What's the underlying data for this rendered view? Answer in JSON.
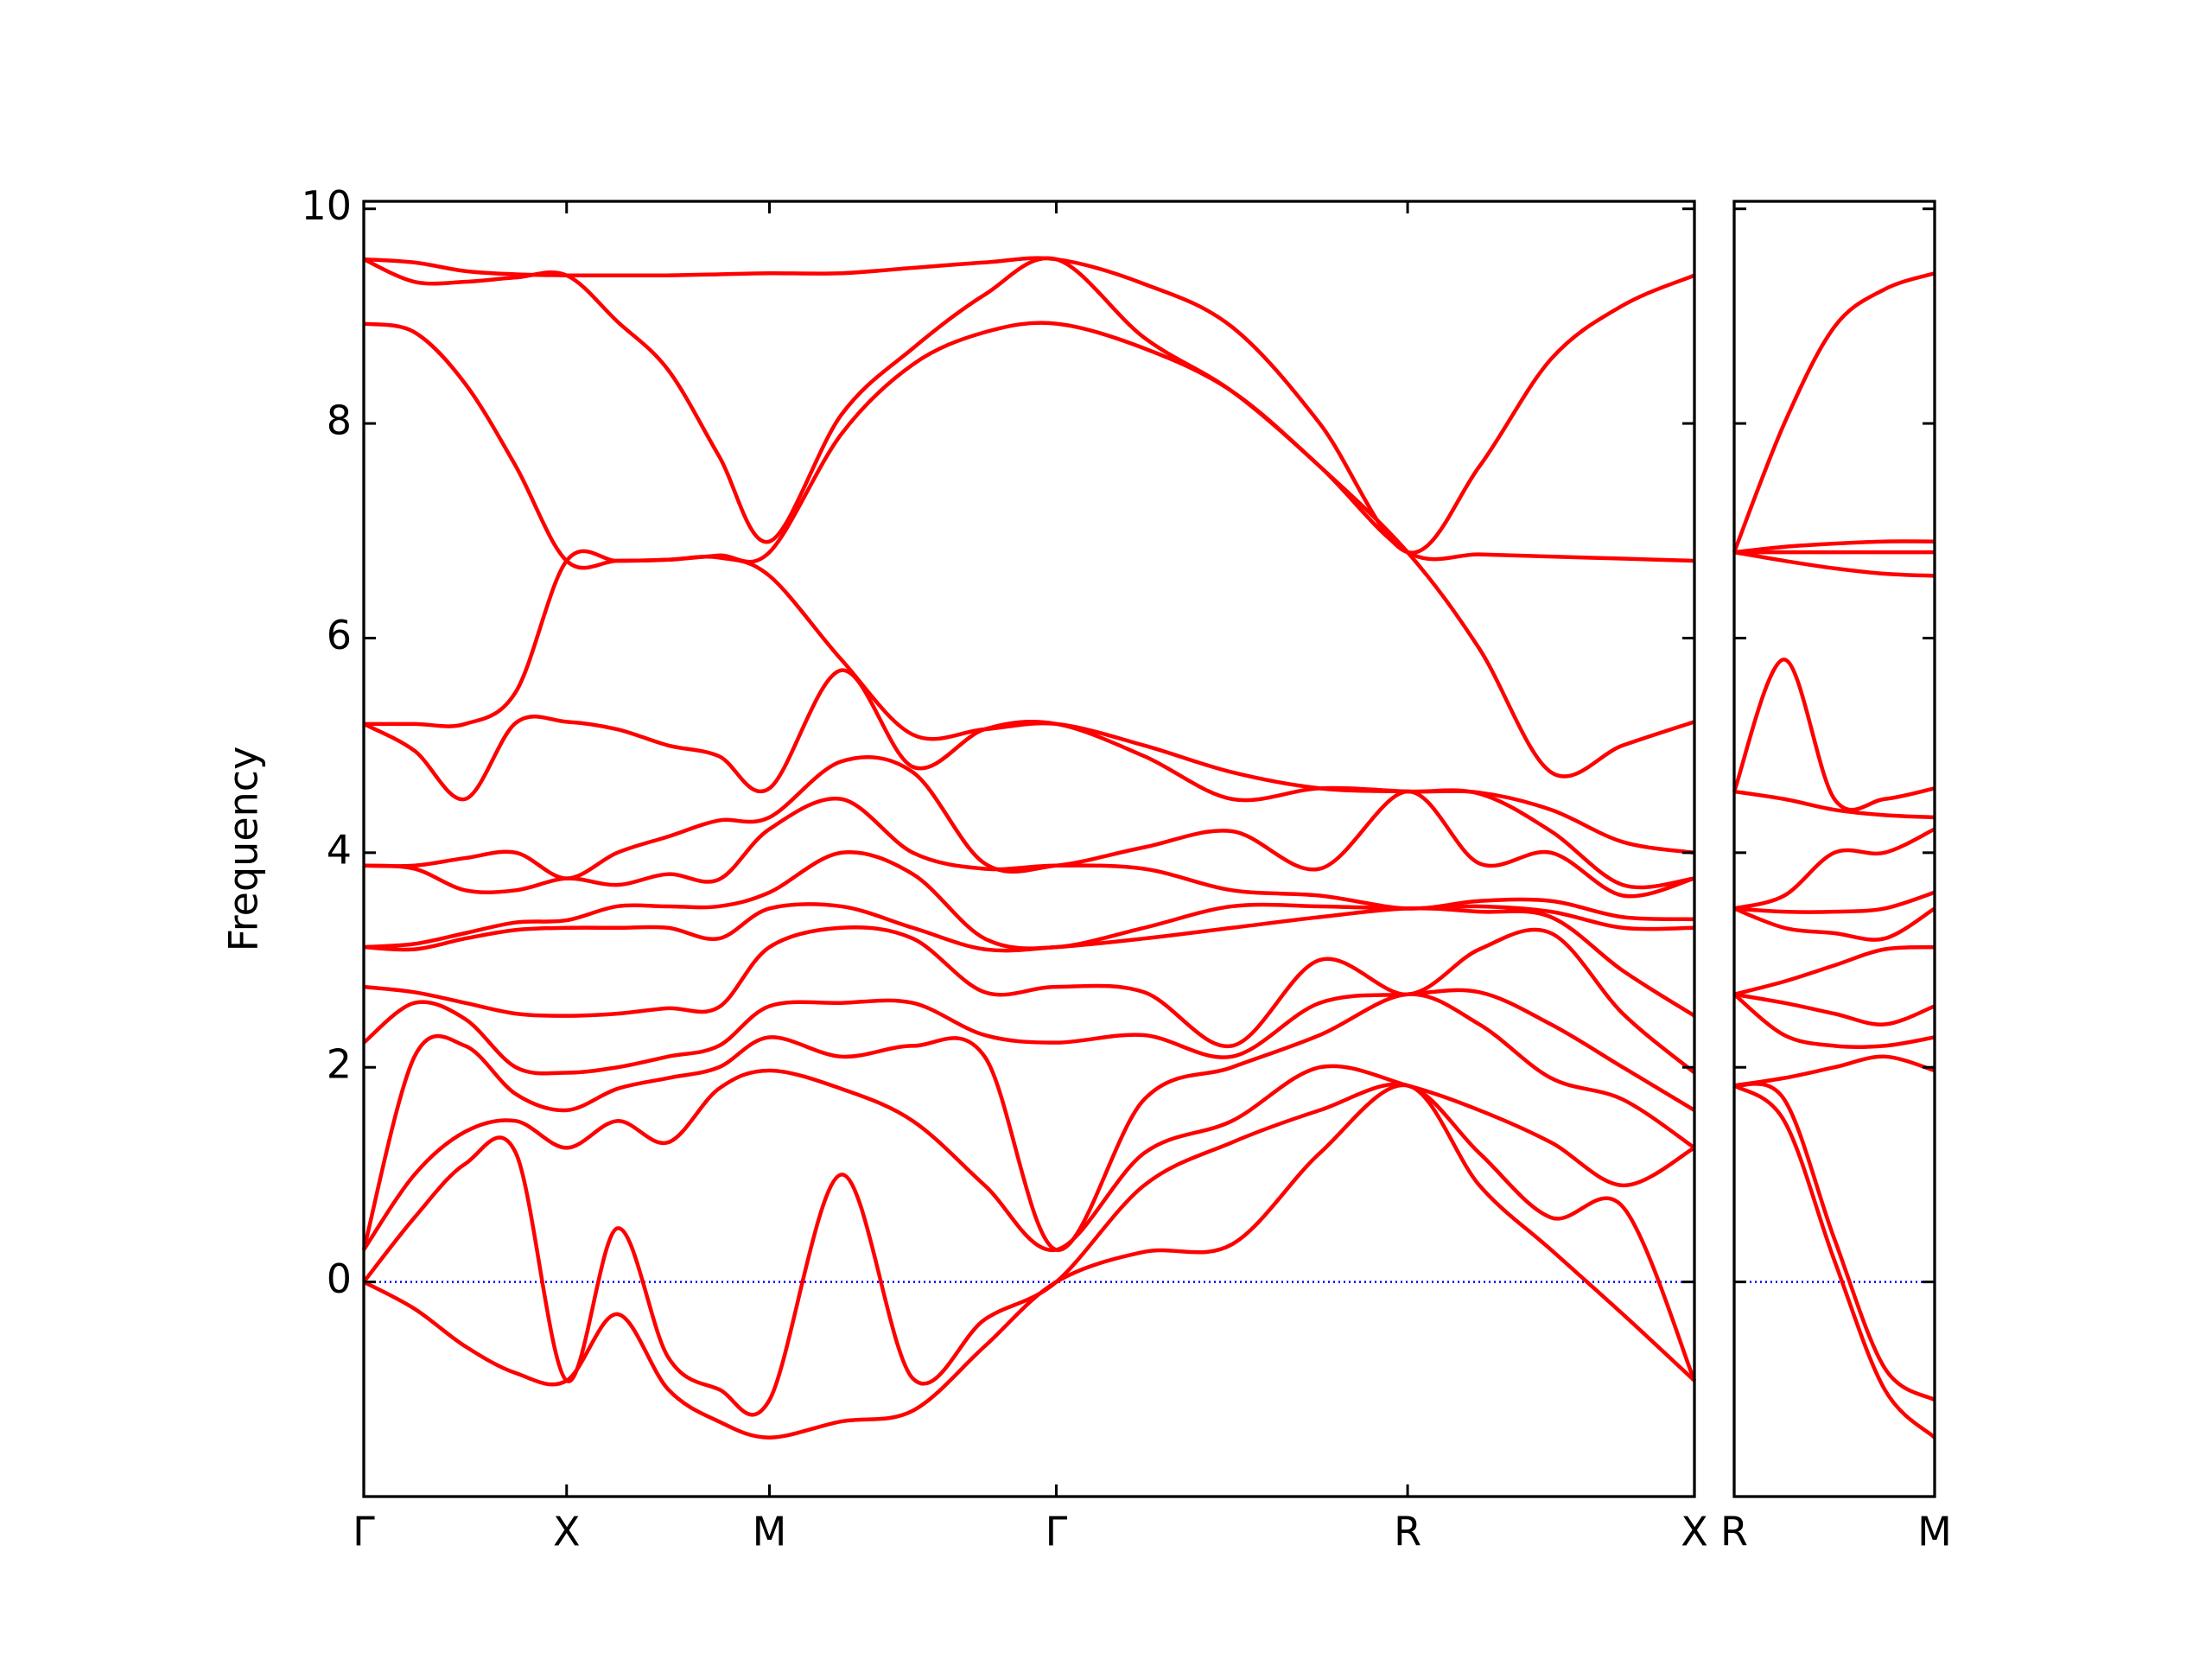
{
  "chart_data": [
    {
      "type": "line",
      "ylabel": "Frequency",
      "line_color": "#ff0000",
      "xlim": [
        0,
        6.56
      ],
      "ylim": [
        -2,
        10.07
      ],
      "xticks": [
        {
          "value": 0,
          "label": "Γ"
        },
        {
          "value": 1,
          "label": "X"
        },
        {
          "value": 2,
          "label": "M"
        },
        {
          "value": 3.414,
          "label": "Γ"
        },
        {
          "value": 5.146,
          "label": "R"
        },
        {
          "value": 6.56,
          "label": "X"
        }
      ],
      "yticks": [
        0,
        2,
        4,
        6,
        8,
        10
      ],
      "ytick_labels": true,
      "reference_line": {
        "value": 0,
        "color": "#0000ff"
      },
      "x": [
        0,
        0.25,
        0.5,
        0.75,
        1,
        1.25,
        1.5,
        1.75,
        2,
        2.354,
        2.707,
        3.061,
        3.414,
        3.847,
        4.28,
        4.713,
        5.146,
        5.5,
        5.853,
        6.207,
        6.56
      ],
      "series": [
        {
          "values": [
            9.53,
            9.5,
            9.42,
            9.39,
            9.38,
            9.38,
            9.38,
            9.39,
            9.4,
            9.4,
            9.45,
            9.5,
            9.53,
            9.3,
            8.9,
            8.0,
            6.8,
            7.6,
            8.6,
            9.1,
            9.38
          ]
        },
        {
          "values": [
            9.53,
            9.32,
            9.32,
            9.36,
            9.38,
            8.95,
            8.5,
            7.7,
            6.9,
            8.08,
            8.7,
            9.2,
            9.53,
            8.8,
            8.3,
            7.6,
            6.8,
            6.78,
            6.76,
            6.74,
            6.72
          ]
        },
        {
          "values": [
            8.93,
            8.85,
            8.37,
            7.6,
            6.72,
            6.72,
            6.73,
            6.77,
            6.8,
            7.9,
            8.55,
            8.85,
            8.93,
            8.7,
            8.3,
            7.6,
            6.8,
            5.9,
            4.75,
            5.0,
            5.22
          ]
        },
        {
          "values": [
            5.2,
            5.2,
            5.2,
            5.5,
            6.72,
            6.72,
            6.73,
            6.75,
            6.58,
            5.8,
            5.1,
            5.15,
            5.2,
            5.0,
            4.75,
            4.6,
            4.57,
            4.56,
            4.4,
            4.1,
            4.0
          ]
        },
        {
          "values": [
            5.2,
            4.95,
            4.5,
            5.21,
            5.22,
            5.15,
            5.0,
            4.9,
            4.6,
            5.7,
            4.8,
            5.15,
            5.2,
            4.9,
            4.5,
            4.6,
            4.57,
            4.55,
            4.2,
            3.7,
            3.76
          ]
        },
        {
          "values": [
            3.88,
            3.88,
            3.95,
            4.0,
            3.76,
            4.0,
            4.15,
            4.3,
            4.33,
            4.85,
            4.75,
            3.9,
            3.88,
            4.05,
            4.2,
            3.85,
            4.57,
            3.9,
            4.0,
            3.6,
            3.76
          ]
        },
        {
          "values": [
            3.88,
            3.85,
            3.65,
            3.65,
            3.76,
            3.7,
            3.8,
            3.75,
            4.22,
            4.5,
            4.0,
            3.85,
            3.88,
            3.85,
            3.65,
            3.6,
            3.48,
            3.55,
            3.55,
            3.4,
            3.38
          ]
        },
        {
          "values": [
            3.12,
            3.15,
            3.25,
            3.35,
            3.37,
            3.5,
            3.5,
            3.5,
            3.63,
            4.0,
            3.8,
            3.2,
            3.12,
            3.3,
            3.5,
            3.5,
            3.48,
            3.5,
            3.45,
            3.3,
            3.3
          ]
        },
        {
          "values": [
            3.12,
            3.1,
            3.2,
            3.28,
            3.3,
            3.3,
            3.3,
            3.2,
            3.48,
            3.5,
            3.3,
            3.1,
            3.12,
            3.2,
            3.3,
            3.4,
            3.48,
            3.45,
            3.4,
            2.9,
            2.48
          ]
        },
        {
          "values": [
            2.75,
            2.7,
            2.6,
            2.5,
            2.48,
            2.5,
            2.55,
            2.56,
            3.12,
            3.3,
            3.2,
            2.7,
            2.75,
            2.7,
            2.2,
            3.0,
            2.68,
            3.1,
            3.25,
            2.5,
            1.95
          ]
        },
        {
          "values": [
            2.23,
            2.6,
            2.45,
            2.0,
            1.95,
            2.0,
            2.1,
            2.2,
            2.57,
            2.6,
            2.6,
            2.3,
            2.23,
            2.3,
            2.1,
            2.6,
            2.68,
            2.7,
            2.4,
            2.0,
            1.6
          ]
        },
        {
          "values": [
            0.3,
            2.1,
            2.2,
            1.75,
            1.6,
            1.8,
            1.9,
            2.0,
            2.28,
            2.1,
            2.2,
            2.1,
            0.3,
            1.7,
            2.0,
            2.3,
            2.68,
            2.4,
            1.9,
            1.7,
            1.25
          ]
        },
        {
          "values": [
            0.3,
            1.0,
            1.4,
            1.5,
            1.25,
            1.5,
            1.3,
            1.8,
            1.97,
            1.8,
            1.5,
            0.9,
            0.3,
            1.2,
            1.5,
            2.0,
            1.83,
            1.6,
            1.3,
            0.9,
            1.25
          ]
        },
        {
          "values": [
            0,
            0.6,
            1.1,
            1.2,
            -0.92,
            0.5,
            -0.7,
            -1.0,
            -1.1,
            1.0,
            -0.9,
            -0.35,
            0,
            0.9,
            1.3,
            1.6,
            1.83,
            1.2,
            0.6,
            0.7,
            -0.92
          ]
        },
        {
          "values": [
            0,
            -0.25,
            -0.6,
            -0.85,
            -0.92,
            -0.3,
            -1.0,
            -1.3,
            -1.45,
            -1.3,
            -1.2,
            -0.6,
            0,
            0.28,
            0.35,
            1.2,
            1.83,
            0.9,
            0.3,
            -0.3,
            -0.92
          ]
        }
      ]
    },
    {
      "type": "line",
      "line_color": "#ff0000",
      "xlim": [
        0,
        1
      ],
      "ylim": [
        -2,
        10.07
      ],
      "xticks": [
        {
          "value": 0,
          "label": "R"
        },
        {
          "value": 1,
          "label": "M"
        }
      ],
      "yticks": [
        0,
        2,
        4,
        6,
        8,
        10
      ],
      "ytick_labels": false,
      "reference_line": {
        "value": 0,
        "color": "#0000ff"
      },
      "x": [
        0,
        0.25,
        0.5,
        0.75,
        1
      ],
      "series": [
        {
          "values": [
            6.8,
            8.0,
            8.9,
            9.25,
            9.4
          ]
        },
        {
          "values": [
            6.8,
            6.85,
            6.88,
            6.9,
            6.9
          ]
        },
        {
          "values": [
            6.8,
            6.8,
            6.8,
            6.8,
            6.8
          ]
        },
        {
          "values": [
            6.8,
            6.72,
            6.65,
            6.6,
            6.58
          ]
        },
        {
          "values": [
            4.57,
            5.8,
            4.5,
            4.5,
            4.6
          ]
        },
        {
          "values": [
            4.57,
            4.5,
            4.4,
            4.35,
            4.33
          ]
        },
        {
          "values": [
            3.48,
            3.6,
            4.0,
            4.0,
            4.22
          ]
        },
        {
          "values": [
            3.48,
            3.45,
            3.45,
            3.48,
            3.63
          ]
        },
        {
          "values": [
            3.48,
            3.3,
            3.25,
            3.2,
            3.48
          ]
        },
        {
          "values": [
            2.68,
            2.8,
            2.95,
            3.1,
            3.12
          ]
        },
        {
          "values": [
            2.68,
            2.6,
            2.5,
            2.4,
            2.57
          ]
        },
        {
          "values": [
            2.68,
            2.3,
            2.2,
            2.2,
            2.28
          ]
        },
        {
          "values": [
            1.83,
            1.9,
            2.0,
            2.1,
            1.97
          ]
        },
        {
          "values": [
            1.83,
            1.7,
            0.4,
            -0.8,
            -1.1
          ]
        },
        {
          "values": [
            1.83,
            1.5,
            0.2,
            -1.0,
            -1.45
          ]
        }
      ]
    }
  ]
}
